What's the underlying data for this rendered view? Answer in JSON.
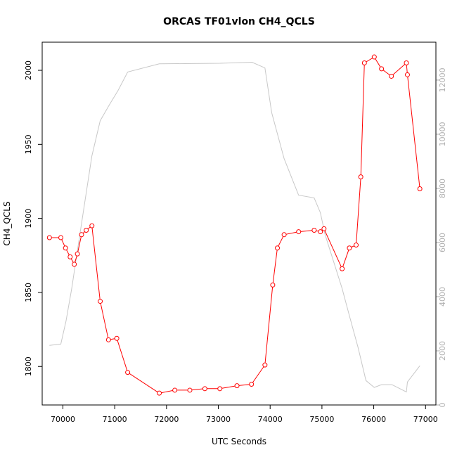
{
  "chart_data": {
    "type": "line",
    "title": "ORCAS TF01vlon CH4_QCLS",
    "xlabel": "UTC Seconds",
    "ylabel": "CH4_QCLS",
    "xlim": [
      69600,
      77200
    ],
    "ylim": [
      1774,
      2019
    ],
    "y2lim": [
      0,
      13400
    ],
    "x_ticks": [
      70000,
      71000,
      72000,
      73000,
      74000,
      75000,
      76000,
      77000
    ],
    "y_ticks": [
      1800,
      1850,
      1900,
      1950,
      2000
    ],
    "y2_ticks": [
      0,
      2000,
      4000,
      6000,
      8000,
      10000,
      12000
    ],
    "grid": false,
    "series": [
      {
        "color": "#ff0000",
        "marker": "open-circle",
        "axis": "left",
        "x": [
          69740,
          69960,
          70050,
          70140,
          70220,
          70280,
          70360,
          70450,
          70560,
          70720,
          70880,
          71040,
          71250,
          71860,
          72160,
          72450,
          72740,
          73030,
          73360,
          73640,
          73900,
          74050,
          74140,
          74270,
          74550,
          74850,
          74970,
          75040,
          75390,
          75530,
          75660,
          75750,
          75820,
          76010,
          76150,
          76340,
          76630,
          76650,
          76890
        ],
        "y": [
          1887,
          1887,
          1880,
          1874,
          1869,
          1876,
          1889,
          1892,
          1895,
          1844,
          1818,
          1819,
          1796,
          1782,
          1784,
          1784,
          1785,
          1785,
          1787,
          1788,
          1801,
          1855,
          1880,
          1889,
          1891,
          1892,
          1891,
          1893,
          1866,
          1880,
          1882,
          1928,
          2005,
          2009,
          2001,
          1996,
          2005,
          1997,
          1920
        ]
      },
      {
        "color": "#c8c8c8",
        "marker": "none",
        "axis": "right",
        "x": [
          69740,
          69960,
          70060,
          70170,
          70280,
          70400,
          70560,
          70720,
          70900,
          71060,
          71250,
          71860,
          72500,
          73030,
          73650,
          73900,
          74030,
          74270,
          74550,
          74850,
          74970,
          75060,
          75390,
          75530,
          75700,
          75850,
          76010,
          76150,
          76350,
          76630,
          76650,
          76890
        ],
        "y": [
          2200,
          2250,
          3100,
          4300,
          5700,
          7200,
          9200,
          10500,
          11100,
          11600,
          12300,
          12600,
          12610,
          12620,
          12660,
          12450,
          10800,
          9100,
          7750,
          7650,
          7100,
          6300,
          4300,
          3300,
          2100,
          900,
          650,
          750,
          750,
          480,
          850,
          1450
        ]
      }
    ]
  }
}
